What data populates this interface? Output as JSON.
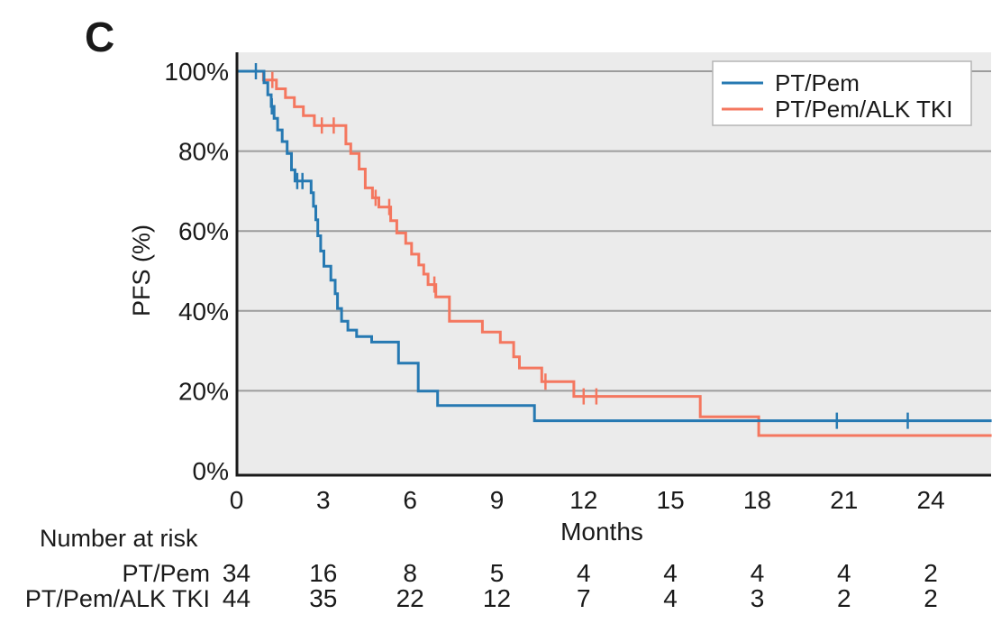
{
  "panel_label": "C",
  "colors": {
    "series_blue": "#2679B2",
    "series_orange": "#F4775F",
    "plot_background": "#EBEBEB",
    "gridline": "#9C9C9C",
    "axis": "#1A1A1A",
    "text": "#1A1A1A",
    "legend_border": "#B5B5B5",
    "legend_background": "#FFFFFF"
  },
  "chart_data": {
    "type": "line",
    "subtype": "kaplan-meier-step",
    "title": "",
    "xlabel": "Months",
    "ylabel": "PFS (%)",
    "xlim": [
      0,
      26.1
    ],
    "ylim": [
      0,
      100
    ],
    "xticks": [
      0,
      3,
      6,
      9,
      12,
      15,
      18,
      21,
      24
    ],
    "yticks": [
      0,
      20,
      40,
      60,
      80,
      100
    ],
    "ytick_labels": [
      "0%",
      "20%",
      "40%",
      "60%",
      "80%",
      "100%"
    ],
    "grid": "horizontal",
    "grid_values": [
      20,
      40,
      60,
      80,
      100
    ],
    "legend_position": "top-right",
    "series": [
      {
        "name": "PT/Pem/ALK TKI",
        "color": "#F4775F",
        "step_points": [
          [
            0,
            100
          ],
          [
            0.93,
            97.8
          ],
          [
            1.38,
            95.6
          ],
          [
            1.69,
            93.4
          ],
          [
            2.0,
            91.1
          ],
          [
            2.31,
            88.9
          ],
          [
            2.69,
            86.4
          ],
          [
            3.78,
            81.8
          ],
          [
            3.95,
            79.4
          ],
          [
            4.24,
            75.5
          ],
          [
            4.45,
            70.8
          ],
          [
            4.7,
            68.3
          ],
          [
            4.92,
            66.0
          ],
          [
            5.33,
            62.6
          ],
          [
            5.54,
            59.5
          ],
          [
            5.85,
            56.9
          ],
          [
            6.05,
            54.2
          ],
          [
            6.3,
            51.5
          ],
          [
            6.47,
            49.2
          ],
          [
            6.62,
            46.6
          ],
          [
            6.89,
            43.5
          ],
          [
            7.36,
            37.4
          ],
          [
            8.5,
            34.7
          ],
          [
            9.12,
            32.1
          ],
          [
            9.58,
            28.5
          ],
          [
            9.78,
            25.7
          ],
          [
            10.55,
            22.3
          ],
          [
            11.66,
            18.6
          ],
          [
            16.03,
            13.5
          ],
          [
            18.05,
            8.8
          ]
        ],
        "censor_marks": [
          [
            1.24,
            97.8
          ],
          [
            2.95,
            86.4
          ],
          [
            3.36,
            86.4
          ],
          [
            4.81,
            68.3
          ],
          [
            5.28,
            66.0
          ],
          [
            6.84,
            46.6
          ],
          [
            10.68,
            22.3
          ],
          [
            12.0,
            18.6
          ],
          [
            12.44,
            18.6
          ]
        ]
      },
      {
        "name": "PT/Pem",
        "color": "#2679B2",
        "step_points": [
          [
            0,
            100
          ],
          [
            0.95,
            97.1
          ],
          [
            1.08,
            94.1
          ],
          [
            1.2,
            91.2
          ],
          [
            1.3,
            88.2
          ],
          [
            1.42,
            85.3
          ],
          [
            1.58,
            82.4
          ],
          [
            1.75,
            79.4
          ],
          [
            1.9,
            75.3
          ],
          [
            2.02,
            72.5
          ],
          [
            2.58,
            69.6
          ],
          [
            2.66,
            66.2
          ],
          [
            2.74,
            62.8
          ],
          [
            2.81,
            58.8
          ],
          [
            2.91,
            55.0
          ],
          [
            3.02,
            51.2
          ],
          [
            3.26,
            47.7
          ],
          [
            3.41,
            44.3
          ],
          [
            3.49,
            40.6
          ],
          [
            3.63,
            37.4
          ],
          [
            3.85,
            35.2
          ],
          [
            4.15,
            33.6
          ],
          [
            4.67,
            32.2
          ],
          [
            5.6,
            26.9
          ],
          [
            6.28,
            19.9
          ],
          [
            6.95,
            16.3
          ],
          [
            10.3,
            12.5
          ]
        ],
        "censor_marks": [
          [
            0.67,
            100
          ],
          [
            1.22,
            91.2
          ],
          [
            2.1,
            72.5
          ],
          [
            2.28,
            72.5
          ],
          [
            20.75,
            12.5
          ],
          [
            23.2,
            12.5
          ]
        ]
      }
    ],
    "legend_order": [
      "PT/Pem",
      "PT/Pem/ALK TKI"
    ]
  },
  "risk_table": {
    "title": "Number at risk",
    "months": [
      0,
      3,
      6,
      9,
      12,
      15,
      18,
      21,
      24
    ],
    "rows": [
      {
        "label": "PT/Pem",
        "color": "#2679B2",
        "values": [
          34,
          16,
          8,
          5,
          4,
          4,
          4,
          4,
          2
        ]
      },
      {
        "label": "PT/Pem/ALK TKI",
        "color": "#F4775F",
        "values": [
          44,
          35,
          22,
          12,
          7,
          4,
          3,
          2,
          2
        ]
      }
    ]
  }
}
